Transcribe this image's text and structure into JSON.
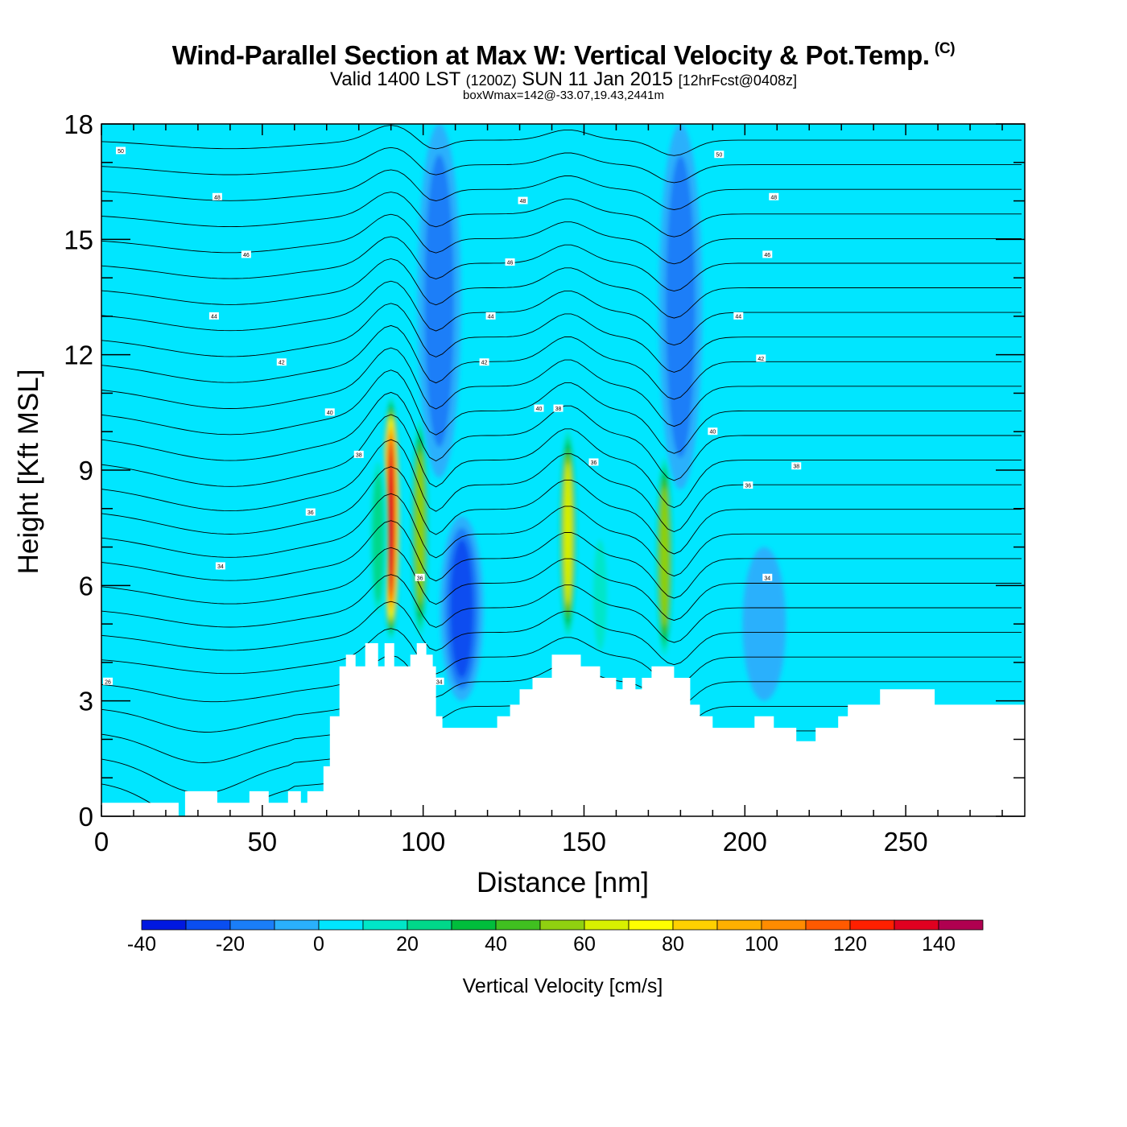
{
  "header": {
    "title": "Wind-Parallel Section at Max W: Vertical Velocity & Pot.Temp.",
    "copyright": "(C)",
    "valid_prefix": "Valid 1400 LST",
    "valid_utc": "(1200Z)",
    "valid_date": "SUN 11 Jan 2015",
    "forecast": "[12hrFcst@0408z]",
    "box_note": "boxWmax=142@-33.07,19.43,2441m"
  },
  "chart_data": {
    "type": "heatmap",
    "xlabel": "Distance [nm]",
    "ylabel": "Height [Kft MSL]",
    "xlim": [
      0,
      287
    ],
    "ylim": [
      0,
      18
    ],
    "x_ticks": [
      "0",
      "50",
      "100",
      "150",
      "200",
      "250"
    ],
    "x_tick_values": [
      0,
      50,
      100,
      150,
      200,
      250
    ],
    "y_ticks": [
      "0",
      "3",
      "6",
      "9",
      "12",
      "15",
      "18"
    ],
    "y_tick_values": [
      0,
      3,
      6,
      9,
      12,
      15,
      18
    ],
    "colorbar": {
      "title": "Vertical Velocity [cm/s]",
      "tick_labels": [
        "-40",
        "-20",
        "0",
        "20",
        "40",
        "60",
        "80",
        "100",
        "120",
        "140"
      ],
      "tick_values": [
        -40,
        -20,
        0,
        20,
        40,
        60,
        80,
        100,
        120,
        140
      ],
      "levels": [
        -40,
        -30,
        -20,
        -10,
        0,
        10,
        20,
        30,
        40,
        50,
        60,
        70,
        80,
        90,
        100,
        110,
        120,
        130,
        140,
        150
      ],
      "colors": [
        "#0018e0",
        "#0a4ef0",
        "#1a7ef8",
        "#2ab0fc",
        "#00e6ff",
        "#00e6c8",
        "#00d88a",
        "#00be3c",
        "#40c020",
        "#90d010",
        "#d8f000",
        "#ffff00",
        "#ffd000",
        "#ffb000",
        "#ff8c00",
        "#ff5a00",
        "#ff2000",
        "#e00020",
        "#b00050"
      ]
    },
    "vertical_velocity_features": [
      {
        "x": 90,
        "y_bottom": 4.5,
        "y_top": 11.0,
        "peak": 142,
        "kind": "updraft"
      },
      {
        "x": 99,
        "y_bottom": 4.5,
        "y_top": 10.5,
        "peak": 60,
        "kind": "updraft"
      },
      {
        "x": 86,
        "y_bottom": 5.0,
        "y_top": 9.5,
        "peak": 30,
        "kind": "updraft"
      },
      {
        "x": 145,
        "y_bottom": 4.5,
        "y_top": 10.2,
        "peak": 70,
        "kind": "updraft"
      },
      {
        "x": 175,
        "y_bottom": 4.0,
        "y_top": 9.5,
        "peak": 60,
        "kind": "updraft"
      },
      {
        "x": 155,
        "y_bottom": 4.0,
        "y_top": 7.5,
        "peak": 20,
        "kind": "updraft"
      },
      {
        "x": 112,
        "y_bottom": 3.0,
        "y_top": 7.8,
        "peak": -35,
        "kind": "downdraft"
      },
      {
        "x": 105,
        "y_bottom": 8.8,
        "y_top": 18.0,
        "peak": -20,
        "kind": "downdraft"
      },
      {
        "x": 180,
        "y_bottom": 8.5,
        "y_top": 18.0,
        "peak": -25,
        "kind": "downdraft"
      },
      {
        "x": 206,
        "y_bottom": 3.0,
        "y_top": 7.0,
        "peak": -15,
        "kind": "downdraft"
      }
    ],
    "terrain": [
      {
        "x": 0,
        "y": 0.35
      },
      {
        "x": 24,
        "y": 0.35
      },
      {
        "x": 24,
        "y": 0.0
      },
      {
        "x": 26,
        "y": 0.0
      },
      {
        "x": 26,
        "y": 0.65
      },
      {
        "x": 36,
        "y": 0.65
      },
      {
        "x": 36,
        "y": 0.35
      },
      {
        "x": 46,
        "y": 0.35
      },
      {
        "x": 46,
        "y": 0.65
      },
      {
        "x": 52,
        "y": 0.65
      },
      {
        "x": 52,
        "y": 0.35
      },
      {
        "x": 58,
        "y": 0.35
      },
      {
        "x": 58,
        "y": 0.65
      },
      {
        "x": 62,
        "y": 0.65
      },
      {
        "x": 62,
        "y": 0.35
      },
      {
        "x": 64,
        "y": 0.35
      },
      {
        "x": 64,
        "y": 0.65
      },
      {
        "x": 69,
        "y": 0.65
      },
      {
        "x": 69,
        "y": 1.3
      },
      {
        "x": 71,
        "y": 1.3
      },
      {
        "x": 71,
        "y": 2.6
      },
      {
        "x": 74,
        "y": 2.6
      },
      {
        "x": 74,
        "y": 3.9
      },
      {
        "x": 76,
        "y": 3.9
      },
      {
        "x": 76,
        "y": 4.2
      },
      {
        "x": 79,
        "y": 4.2
      },
      {
        "x": 79,
        "y": 3.9
      },
      {
        "x": 82,
        "y": 3.9
      },
      {
        "x": 82,
        "y": 4.5
      },
      {
        "x": 86,
        "y": 4.5
      },
      {
        "x": 86,
        "y": 3.9
      },
      {
        "x": 88,
        "y": 3.9
      },
      {
        "x": 88,
        "y": 4.5
      },
      {
        "x": 91,
        "y": 4.5
      },
      {
        "x": 91,
        "y": 3.9
      },
      {
        "x": 96,
        "y": 3.9
      },
      {
        "x": 96,
        "y": 4.2
      },
      {
        "x": 98,
        "y": 4.2
      },
      {
        "x": 98,
        "y": 4.5
      },
      {
        "x": 101,
        "y": 4.5
      },
      {
        "x": 101,
        "y": 4.2
      },
      {
        "x": 103,
        "y": 4.2
      },
      {
        "x": 103,
        "y": 3.9
      },
      {
        "x": 104,
        "y": 3.9
      },
      {
        "x": 104,
        "y": 2.6
      },
      {
        "x": 106,
        "y": 2.6
      },
      {
        "x": 106,
        "y": 2.3
      },
      {
        "x": 123,
        "y": 2.3
      },
      {
        "x": 123,
        "y": 2.6
      },
      {
        "x": 127,
        "y": 2.6
      },
      {
        "x": 127,
        "y": 2.9
      },
      {
        "x": 130,
        "y": 2.9
      },
      {
        "x": 130,
        "y": 3.3
      },
      {
        "x": 134,
        "y": 3.3
      },
      {
        "x": 134,
        "y": 3.6
      },
      {
        "x": 140,
        "y": 3.6
      },
      {
        "x": 140,
        "y": 4.2
      },
      {
        "x": 149,
        "y": 4.2
      },
      {
        "x": 149,
        "y": 3.9
      },
      {
        "x": 155,
        "y": 3.9
      },
      {
        "x": 155,
        "y": 3.6
      },
      {
        "x": 160,
        "y": 3.6
      },
      {
        "x": 160,
        "y": 3.3
      },
      {
        "x": 162,
        "y": 3.3
      },
      {
        "x": 162,
        "y": 3.6
      },
      {
        "x": 166,
        "y": 3.6
      },
      {
        "x": 166,
        "y": 3.3
      },
      {
        "x": 168,
        "y": 3.3
      },
      {
        "x": 168,
        "y": 3.6
      },
      {
        "x": 171,
        "y": 3.6
      },
      {
        "x": 171,
        "y": 3.9
      },
      {
        "x": 178,
        "y": 3.9
      },
      {
        "x": 178,
        "y": 3.6
      },
      {
        "x": 183,
        "y": 3.6
      },
      {
        "x": 183,
        "y": 2.9
      },
      {
        "x": 186,
        "y": 2.9
      },
      {
        "x": 186,
        "y": 2.6
      },
      {
        "x": 190,
        "y": 2.6
      },
      {
        "x": 190,
        "y": 2.3
      },
      {
        "x": 203,
        "y": 2.3
      },
      {
        "x": 203,
        "y": 2.6
      },
      {
        "x": 209,
        "y": 2.6
      },
      {
        "x": 209,
        "y": 2.3
      },
      {
        "x": 216,
        "y": 2.3
      },
      {
        "x": 216,
        "y": 1.95
      },
      {
        "x": 222,
        "y": 1.95
      },
      {
        "x": 222,
        "y": 2.3
      },
      {
        "x": 229,
        "y": 2.3
      },
      {
        "x": 229,
        "y": 2.6
      },
      {
        "x": 232,
        "y": 2.6
      },
      {
        "x": 232,
        "y": 2.9
      },
      {
        "x": 242,
        "y": 2.9
      },
      {
        "x": 242,
        "y": 3.3
      },
      {
        "x": 259,
        "y": 3.3
      },
      {
        "x": 259,
        "y": 2.9
      },
      {
        "x": 287,
        "y": 2.9
      }
    ],
    "theta_labels": [
      {
        "text": "50",
        "x": 6,
        "y": 17.3
      },
      {
        "text": "48",
        "x": 36,
        "y": 16.1
      },
      {
        "text": "46",
        "x": 45,
        "y": 14.6
      },
      {
        "text": "44",
        "x": 35,
        "y": 13.0
      },
      {
        "text": "42",
        "x": 56,
        "y": 11.8
      },
      {
        "text": "40",
        "x": 71,
        "y": 10.5
      },
      {
        "text": "38",
        "x": 80,
        "y": 9.4
      },
      {
        "text": "36",
        "x": 65,
        "y": 7.9
      },
      {
        "text": "34",
        "x": 37,
        "y": 6.5
      },
      {
        "text": "26",
        "x": 2,
        "y": 3.5
      },
      {
        "text": "48",
        "x": 131,
        "y": 16.0
      },
      {
        "text": "46",
        "x": 127,
        "y": 14.4
      },
      {
        "text": "44",
        "x": 121,
        "y": 13.0
      },
      {
        "text": "42",
        "x": 119,
        "y": 11.8
      },
      {
        "text": "40",
        "x": 136,
        "y": 10.6
      },
      {
        "text": "38",
        "x": 142,
        "y": 10.6
      },
      {
        "text": "36",
        "x": 153,
        "y": 9.2
      },
      {
        "text": "36",
        "x": 99,
        "y": 6.2
      },
      {
        "text": "34",
        "x": 105,
        "y": 3.5
      },
      {
        "text": "50",
        "x": 192,
        "y": 17.2
      },
      {
        "text": "48",
        "x": 209,
        "y": 16.1
      },
      {
        "text": "46",
        "x": 207,
        "y": 14.6
      },
      {
        "text": "44",
        "x": 198,
        "y": 13.0
      },
      {
        "text": "42",
        "x": 205,
        "y": 11.9
      },
      {
        "text": "40",
        "x": 190,
        "y": 10.0
      },
      {
        "text": "38",
        "x": 216,
        "y": 9.1
      },
      {
        "text": "36",
        "x": 201,
        "y": 8.6
      },
      {
        "text": "34",
        "x": 207,
        "y": 6.2
      }
    ]
  }
}
